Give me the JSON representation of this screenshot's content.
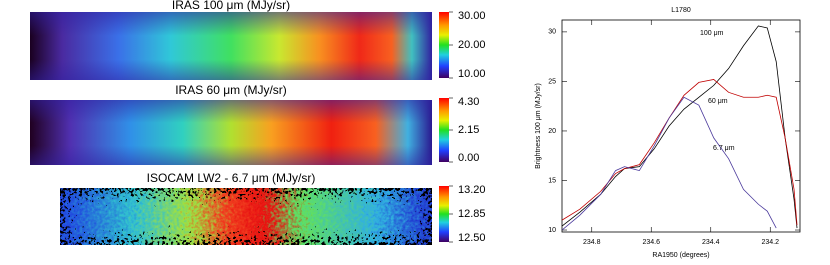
{
  "panels": [
    {
      "title": "IRAS 100 μm (MJy/sr)",
      "colorbar_ticks": [
        {
          "value": 30,
          "label": "30.00"
        },
        {
          "value": 20,
          "label": "20.00"
        },
        {
          "value": 10,
          "label": "10.00"
        }
      ]
    },
    {
      "title": "IRAS 60 μm (MJy/sr)",
      "colorbar_ticks": [
        {
          "value": 4.3,
          "label": "4.30"
        },
        {
          "value": 2.15,
          "label": "2.15"
        },
        {
          "value": 0,
          "label": "0.00"
        }
      ]
    },
    {
      "title": "ISOCAM LW2 - 6.7 μm (MJy/sr)",
      "colorbar_ticks": [
        {
          "value": 13.2,
          "label": "13.20"
        },
        {
          "value": 12.85,
          "label": "12.85"
        },
        {
          "value": 12.5,
          "label": "12.50"
        }
      ]
    }
  ],
  "chart_data": {
    "type": "line",
    "title": "L1780",
    "x_label": "RA1950 (degrees)",
    "y_label": "Brightness 100 μm (MJy/sr)",
    "x": [
      234.9,
      234.84,
      234.77,
      234.72,
      234.69,
      234.64,
      234.59,
      234.54,
      234.49,
      234.44,
      234.39,
      234.34,
      234.29,
      234.24,
      234.21,
      234.18,
      234.15,
      234.12,
      234.11
    ],
    "series": [
      {
        "name": "100 μm",
        "color": "#000000",
        "values": [
          10.4,
          11.8,
          13.6,
          15.4,
          16.2,
          16.4,
          18.2,
          20.5,
          22.2,
          23.4,
          24.6,
          26.3,
          28.6,
          30.6,
          30.4,
          27.0,
          19.3,
          13.1,
          10.2
        ]
      },
      {
        "name": "60 μm",
        "color": "#c00000",
        "values": [
          11.0,
          12.1,
          13.9,
          15.7,
          16.2,
          16.6,
          18.8,
          21.3,
          23.6,
          24.9,
          25.2,
          23.9,
          23.4,
          23.4,
          23.6,
          23.4,
          19.3,
          14.1,
          10.5
        ]
      },
      {
        "name": "6.7 μm",
        "color": "#4b3a9c",
        "values": [
          10.0,
          11.5,
          13.6,
          16.0,
          16.4,
          16.0,
          18.5,
          21.3,
          23.4,
          22.6,
          19.3,
          17.2,
          14.1,
          12.6,
          11.9,
          10.2,
          null,
          null,
          null
        ]
      }
    ],
    "xlim": [
      234.9,
      234.1
    ],
    "xticks": [
      234.8,
      234.6,
      234.4,
      234.2
    ],
    "ylim": [
      9.8,
      31.2
    ],
    "yticks": [
      10,
      15,
      20,
      25,
      30
    ]
  }
}
